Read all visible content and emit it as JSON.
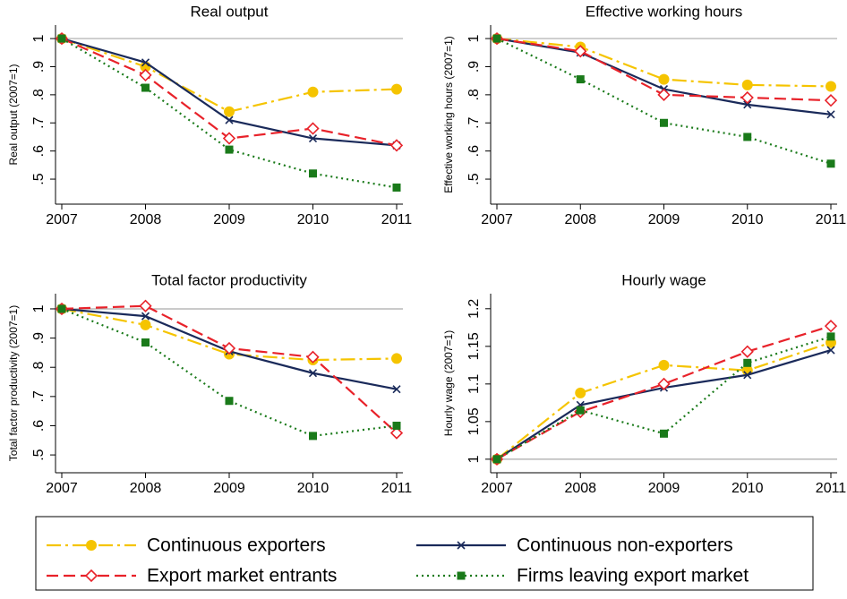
{
  "chart_data": [
    {
      "type": "line",
      "title": "Real output",
      "ylabel": "Real output (2007=1)",
      "categories": [
        "2007",
        "2008",
        "2009",
        "2010",
        "2011"
      ],
      "ylim": [
        0.411,
        1.048
      ],
      "yticks": [
        {
          "value": 0.5,
          "label": ".5"
        },
        {
          "value": 0.6,
          "label": ".6"
        },
        {
          "value": 0.7,
          "label": ".7"
        },
        {
          "value": 0.8,
          "label": ".8"
        },
        {
          "value": 0.9,
          "label": ".9"
        },
        1
      ],
      "yline": 1,
      "series": [
        {
          "name": "Continuous exporters",
          "color": "#f5c400",
          "marker": "circle",
          "line_style": "dash-dot",
          "values": [
            1,
            0.9,
            0.74,
            0.81,
            0.82
          ]
        },
        {
          "name": "Continuous non-exporters",
          "color": "#1a2a5a",
          "marker": "x",
          "line_style": "solid",
          "values": [
            1,
            0.915,
            0.71,
            0.645,
            0.62
          ]
        },
        {
          "name": "Export market entrants",
          "color": "#e8222a",
          "marker": "diamond",
          "line_style": "dash",
          "values": [
            1,
            0.87,
            0.645,
            0.68,
            0.62
          ]
        },
        {
          "name": "Firms leaving export market",
          "color": "#1a7a1a",
          "marker": "square",
          "line_style": "dot",
          "values": [
            1,
            0.825,
            0.605,
            0.52,
            0.47
          ]
        }
      ]
    },
    {
      "type": "line",
      "title": "Effective working hours",
      "ylabel": "Effective working hours (2007=1)",
      "categories": [
        "2007",
        "2008",
        "2009",
        "2010",
        "2011"
      ],
      "ylim": [
        0.411,
        1.048
      ],
      "yticks": [
        {
          "value": 0.5,
          "label": ".5"
        },
        {
          "value": 0.6,
          "label": ".6"
        },
        {
          "value": 0.7,
          "label": ".7"
        },
        {
          "value": 0.8,
          "label": ".8"
        },
        {
          "value": 0.9,
          "label": ".9"
        },
        1
      ],
      "yline": 1,
      "series": [
        {
          "name": "Continuous exporters",
          "color": "#f5c400",
          "marker": "circle",
          "line_style": "dash-dot",
          "values": [
            1,
            0.97,
            0.855,
            0.835,
            0.83
          ]
        },
        {
          "name": "Continuous non-exporters",
          "color": "#1a2a5a",
          "marker": "x",
          "line_style": "solid",
          "values": [
            1,
            0.95,
            0.82,
            0.765,
            0.73
          ]
        },
        {
          "name": "Export market entrants",
          "color": "#e8222a",
          "marker": "diamond",
          "line_style": "dash",
          "values": [
            1,
            0.955,
            0.8,
            0.79,
            0.78
          ]
        },
        {
          "name": "Firms leaving export market",
          "color": "#1a7a1a",
          "marker": "square",
          "line_style": "dot",
          "values": [
            1,
            0.855,
            0.7,
            0.65,
            0.555
          ]
        }
      ]
    },
    {
      "type": "line",
      "title": "Total factor productivity",
      "ylabel": "Total factor productivity (2007=1)",
      "categories": [
        "2007",
        "2008",
        "2009",
        "2010",
        "2011"
      ],
      "ylim": [
        0.439,
        1.052
      ],
      "yticks": [
        {
          "value": 0.5,
          "label": ".5"
        },
        {
          "value": 0.6,
          "label": ".6"
        },
        {
          "value": 0.7,
          "label": ".7"
        },
        {
          "value": 0.8,
          "label": ".8"
        },
        {
          "value": 0.9,
          "label": ".9"
        },
        1
      ],
      "yline": 1,
      "series": [
        {
          "name": "Continuous exporters",
          "color": "#f5c400",
          "marker": "circle",
          "line_style": "dash-dot",
          "values": [
            1,
            0.945,
            0.845,
            0.825,
            0.83
          ]
        },
        {
          "name": "Continuous non-exporters",
          "color": "#1a2a5a",
          "marker": "x",
          "line_style": "solid",
          "values": [
            1,
            0.975,
            0.855,
            0.78,
            0.725
          ]
        },
        {
          "name": "Export market entrants",
          "color": "#e8222a",
          "marker": "diamond",
          "line_style": "dash",
          "values": [
            1,
            1.01,
            0.865,
            0.835,
            0.575
          ]
        },
        {
          "name": "Firms leaving export market",
          "color": "#1a7a1a",
          "marker": "square",
          "line_style": "dot",
          "values": [
            1,
            0.885,
            0.685,
            0.565,
            0.6
          ]
        }
      ]
    },
    {
      "type": "line",
      "title": "Hourly wage",
      "ylabel": "Hourly wage (2007=1)",
      "categories": [
        "2007",
        "2008",
        "2009",
        "2010",
        "2011"
      ],
      "ylim": [
        0.982,
        1.22
      ],
      "yticks": [
        1,
        1.05,
        1.1,
        1.15,
        1.2
      ],
      "yline": 1,
      "series": [
        {
          "name": "Continuous exporters",
          "color": "#f5c400",
          "marker": "circle",
          "line_style": "dash-dot",
          "values": [
            1,
            1.088,
            1.125,
            1.118,
            1.155
          ]
        },
        {
          "name": "Continuous non-exporters",
          "color": "#1a2a5a",
          "marker": "x",
          "line_style": "solid",
          "values": [
            1,
            1.072,
            1.095,
            1.112,
            1.145
          ]
        },
        {
          "name": "Export market entrants",
          "color": "#e8222a",
          "marker": "diamond",
          "line_style": "dash",
          "values": [
            1,
            1.063,
            1.1,
            1.143,
            1.177
          ]
        },
        {
          "name": "Firms leaving export market",
          "color": "#1a7a1a",
          "marker": "square",
          "line_style": "dot",
          "values": [
            1,
            1.065,
            1.034,
            1.128,
            1.163
          ]
        }
      ]
    }
  ]
}
